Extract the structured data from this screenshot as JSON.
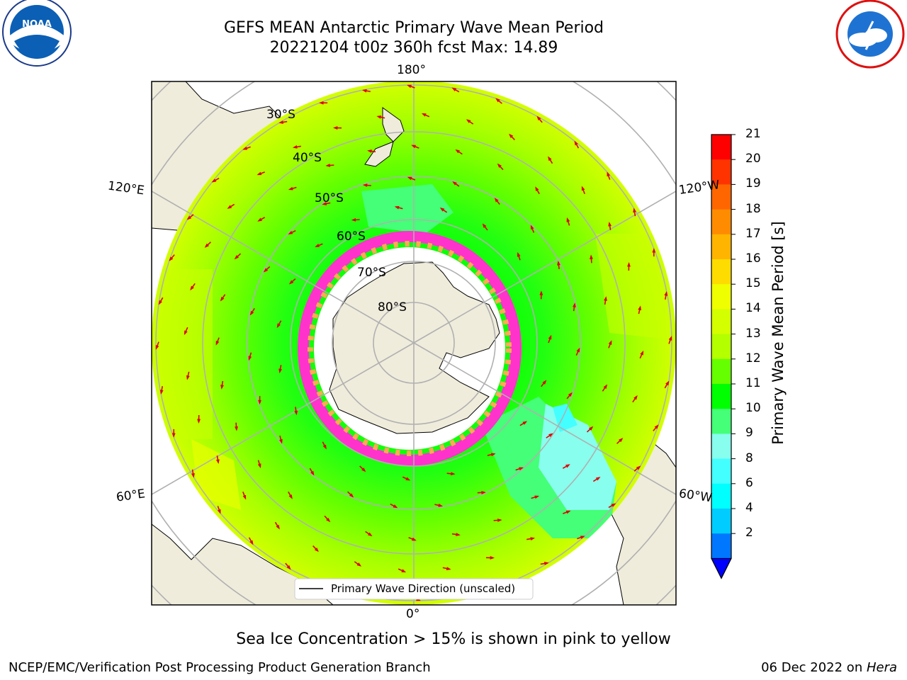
{
  "title_line1": "GEFS MEAN Antarctic Primary Wave Mean Period",
  "title_line2": "20221204 t00z 360h fcst   Max: 14.89",
  "logos": {
    "left": "NOAA",
    "right": "NATIONAL WEATHER SERVICE"
  },
  "map": {
    "projection": "south-polar-stereographic",
    "longitude_labels": {
      "top": "180°",
      "bottom": "0°",
      "left_upper": "120°E",
      "left_lower": "60°E",
      "right_upper": "120°W",
      "right_lower": "60°W"
    },
    "latitude_labels": [
      "30°S",
      "40°S",
      "50°S",
      "60°S",
      "70°S",
      "80°S"
    ],
    "legend": "Primary Wave Direction (unscaled)"
  },
  "colorbar": {
    "title": "Primary Wave Mean Period [s]",
    "ticks": [
      "21",
      "20",
      "19",
      "18",
      "17",
      "16",
      "15",
      "14",
      "13",
      "12",
      "11",
      "10",
      "9",
      "8",
      "6",
      "4",
      "2"
    ],
    "colors": [
      "#ff0000",
      "#ff3300",
      "#ff6600",
      "#ff8c00",
      "#ffb400",
      "#ffdc00",
      "#f0ff00",
      "#d4ff00",
      "#b4ff00",
      "#66ff00",
      "#00ff00",
      "#44ff77",
      "#88ffee",
      "#44ffff",
      "#00ffff",
      "#00ccff",
      "#0077ff"
    ],
    "extend_color": "#0000ff"
  },
  "caption": "Sea Ice Concentration > 15% is shown in pink to yellow",
  "footer": {
    "left": "NCEP/EMC/Verification Post Processing Product Generation Branch",
    "right_text": "06 Dec 2022 on ",
    "right_italic": "Hera"
  }
}
